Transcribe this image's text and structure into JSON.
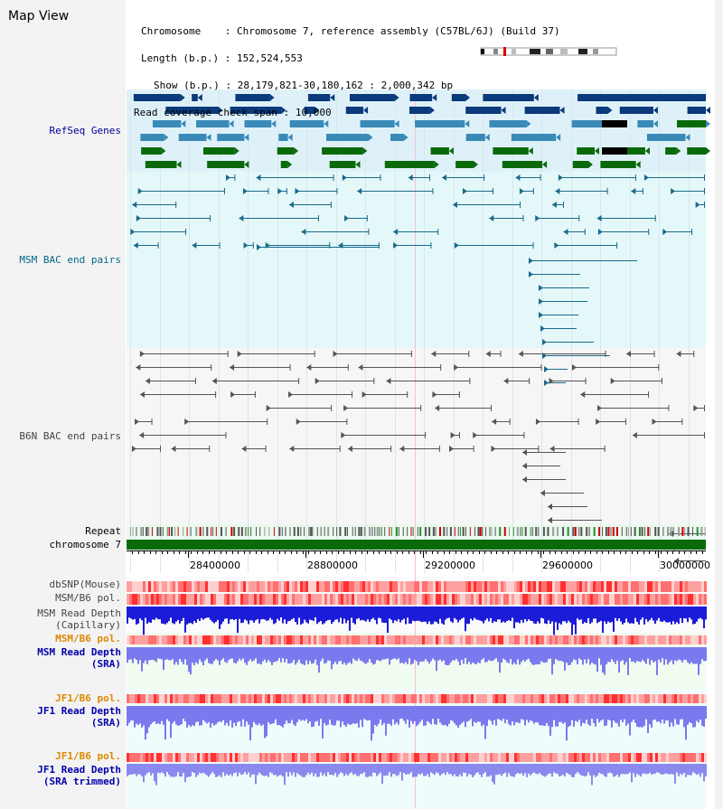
{
  "app": {
    "title": "Map View"
  },
  "info": {
    "chromosome_label": "Chromosome",
    "chromosome_value": "Chromosome 7, reference assembly (C57BL/6J) (Build 37)",
    "length_label": "Length (b.p.)",
    "length_value": "152,524,553",
    "show_label": "Show (b.p.)",
    "show_value": "28,179,821-30,180,162 : 2,000,342 bp",
    "coverage_label": "Read coverage check span",
    "coverage_value": "10,000"
  },
  "tracks": {
    "refseq": "RefSeq Genes",
    "msm_bac": "MSM BAC end pairs",
    "b6n_bac": "B6N BAC end pairs",
    "repeat": "Repeat",
    "chromosome": "chromosome 7",
    "dbsnp": "dbSNP(Mouse)",
    "msm_b6_pol_1": "MSM/B6 pol.",
    "msm_depth_cap_1": "MSM Read Depth",
    "msm_depth_cap_2": "(Capillary)",
    "msm_b6_pol_2": "MSM/B6 pol.",
    "msm_depth_sra_1": "MSM Read Depth",
    "msm_depth_sra_2": "(SRA)",
    "jf1_b6_pol_1": "JF1/B6 pol.",
    "jf1_depth_sra_1": "JF1 Read Depth",
    "jf1_depth_sra_2": "(SRA)",
    "jf1_b6_pol_2": "JF1/B6 pol.",
    "jf1_depth_trim_1": "JF1 Read Depth",
    "jf1_depth_trim_2": "(SRA trimmed)"
  },
  "axis": {
    "ticks": [
      "28400000",
      "28800000",
      "29200000",
      "29600000",
      "30000000"
    ]
  },
  "colors": {
    "refseq_label": "#000099",
    "msm_label": "#006688",
    "b6n_label": "#444444",
    "orange_label": "#dd8800",
    "blue_label": "#0000aa",
    "gene_dark": "#0a3a7a",
    "gene_mid": "#3a8ab8",
    "gene_green": "#0a6a0a",
    "msm_pair": "#1a6a8a",
    "b6n_pair": "#555555"
  }
}
